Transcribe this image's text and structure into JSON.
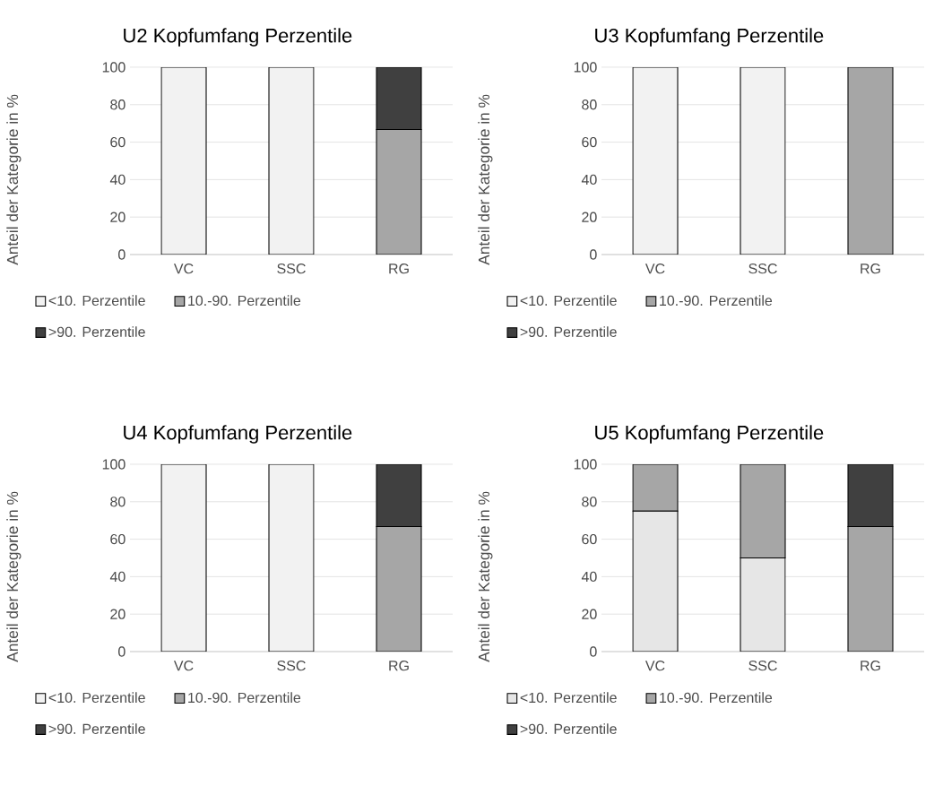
{
  "chart_data": [
    {
      "type": "bar",
      "title": "U2 Kopfumfang Perzentile",
      "ylabel": "Anteil der Kategorie in %",
      "categories": [
        "VC",
        "SSC",
        "RG"
      ],
      "stacked": true,
      "ylim": [
        0,
        100
      ],
      "yticks": [
        0,
        20,
        40,
        60,
        80,
        100
      ],
      "grid": "y",
      "legend": "bottom",
      "series": [
        {
          "name": "<10. Perzentile",
          "color": "#f2f2f2",
          "values": [
            100,
            100,
            0
          ]
        },
        {
          "name": "10.-90. Perzentile",
          "color": "#a6a6a6",
          "values": [
            0,
            0,
            66.7
          ]
        },
        {
          "name": ">90. Perzentile",
          "color": "#404040",
          "values": [
            0,
            0,
            33.3
          ]
        }
      ]
    },
    {
      "type": "bar",
      "title": "U3 Kopfumfang Perzentile",
      "ylabel": "Anteil der Kategorie in %",
      "categories": [
        "VC",
        "SSC",
        "RG"
      ],
      "stacked": true,
      "ylim": [
        0,
        100
      ],
      "yticks": [
        0,
        20,
        40,
        60,
        80,
        100
      ],
      "grid": "y",
      "legend": "bottom",
      "series": [
        {
          "name": "<10. Perzentile",
          "color": "#f2f2f2",
          "values": [
            100,
            100,
            0
          ]
        },
        {
          "name": "10.-90. Perzentile",
          "color": "#a6a6a6",
          "values": [
            0,
            0,
            100
          ]
        },
        {
          "name": ">90. Perzentile",
          "color": "#404040",
          "values": [
            0,
            0,
            0
          ]
        }
      ]
    },
    {
      "type": "bar",
      "title": "U4 Kopfumfang Perzentile",
      "ylabel": "Anteil der Kategorie in %",
      "categories": [
        "VC",
        "SSC",
        "RG"
      ],
      "stacked": true,
      "ylim": [
        0,
        100
      ],
      "yticks": [
        0,
        20,
        40,
        60,
        80,
        100
      ],
      "grid": "y",
      "legend": "bottom",
      "series": [
        {
          "name": "<10. Perzentile",
          "color": "#f2f2f2",
          "values": [
            100,
            100,
            0
          ]
        },
        {
          "name": "10.-90. Perzentile",
          "color": "#a6a6a6",
          "values": [
            0,
            0,
            66.7
          ]
        },
        {
          "name": ">90. Perzentile",
          "color": "#404040",
          "values": [
            0,
            0,
            33.3
          ]
        }
      ]
    },
    {
      "type": "bar",
      "title": "U5 Kopfumfang Perzentile",
      "ylabel": "Anteil der Kategorie in %",
      "categories": [
        "VC",
        "SSC",
        "RG"
      ],
      "stacked": true,
      "ylim": [
        0,
        100
      ],
      "yticks": [
        0,
        20,
        40,
        60,
        80,
        100
      ],
      "grid": "y",
      "legend": "bottom",
      "series": [
        {
          "name": "<10. Perzentile",
          "color": "#e6e6e6",
          "values": [
            75,
            50,
            0
          ]
        },
        {
          "name": "10.-90. Perzentile",
          "color": "#a6a6a6",
          "values": [
            25,
            50,
            66.7
          ]
        },
        {
          "name": ">90. Perzentile",
          "color": "#404040",
          "values": [
            0,
            0,
            33.3
          ]
        }
      ]
    }
  ]
}
